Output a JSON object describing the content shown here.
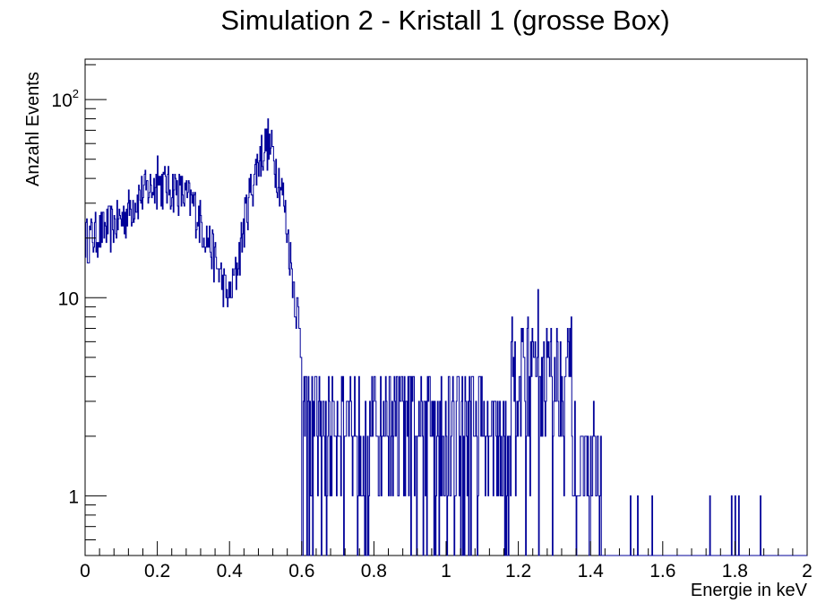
{
  "chart_data": {
    "type": "histogram",
    "title": "Simulation 2 - Kristall 1 (grosse Box)",
    "xlabel": "Energie in keV",
    "ylabel": "Anzahl Events",
    "xlim": [
      0,
      2
    ],
    "ylim": [
      0.5,
      160
    ],
    "y_scale": "log",
    "grid": false,
    "line_color": "#000099",
    "x_ticks": [
      0,
      0.2,
      0.4,
      0.6,
      0.8,
      1,
      1.2,
      1.4,
      1.6,
      1.8,
      2
    ],
    "x_tick_labels": [
      "0",
      "0.2",
      "0.4",
      "0.6",
      "0.8",
      "1",
      "1.2",
      "1.4",
      "1.6",
      "1.8",
      "2"
    ],
    "y_ticks": [
      1,
      10,
      100
    ],
    "y_tick_labels": [
      {
        "base": "1",
        "exp": ""
      },
      {
        "base": "10",
        "exp": ""
      },
      {
        "base": "10",
        "exp": "2"
      }
    ],
    "bin_width": 0.002,
    "envelope": {
      "x": [
        0,
        0.05,
        0.1,
        0.15,
        0.2,
        0.25,
        0.3,
        0.35,
        0.38,
        0.4,
        0.42,
        0.45,
        0.48,
        0.5,
        0.52,
        0.55,
        0.57,
        0.59,
        0.6
      ],
      "y": [
        20,
        22,
        25,
        33,
        38,
        36,
        30,
        18,
        12,
        10,
        14,
        30,
        50,
        60,
        55,
        32,
        15,
        8,
        5
      ]
    },
    "regions": [
      {
        "x": [
          0.6,
          1.1
        ],
        "mean": 2.6,
        "min": 1,
        "max": 8
      },
      {
        "x": [
          1.1,
          1.18
        ],
        "mean": 2.0,
        "min": 1,
        "max": 5
      },
      {
        "x": [
          1.18,
          1.35
        ],
        "mean": 4.5,
        "min": 1,
        "max": 11
      },
      {
        "x": [
          1.35,
          1.43
        ],
        "mean": 1.5,
        "min": 1,
        "max": 3
      }
    ],
    "isolated_counts": [
      {
        "x": 1.51,
        "y": 1
      },
      {
        "x": 1.53,
        "y": 1
      },
      {
        "x": 1.57,
        "y": 1
      },
      {
        "x": 1.73,
        "y": 1
      },
      {
        "x": 1.79,
        "y": 1
      },
      {
        "x": 1.8,
        "y": 1
      },
      {
        "x": 1.81,
        "y": 1
      },
      {
        "x": 1.87,
        "y": 1
      }
    ],
    "peaks": [
      {
        "x": 0.506,
        "y": 80
      },
      {
        "x": 0.2,
        "y": 52
      },
      {
        "x": 1.255,
        "y": 11
      }
    ]
  }
}
